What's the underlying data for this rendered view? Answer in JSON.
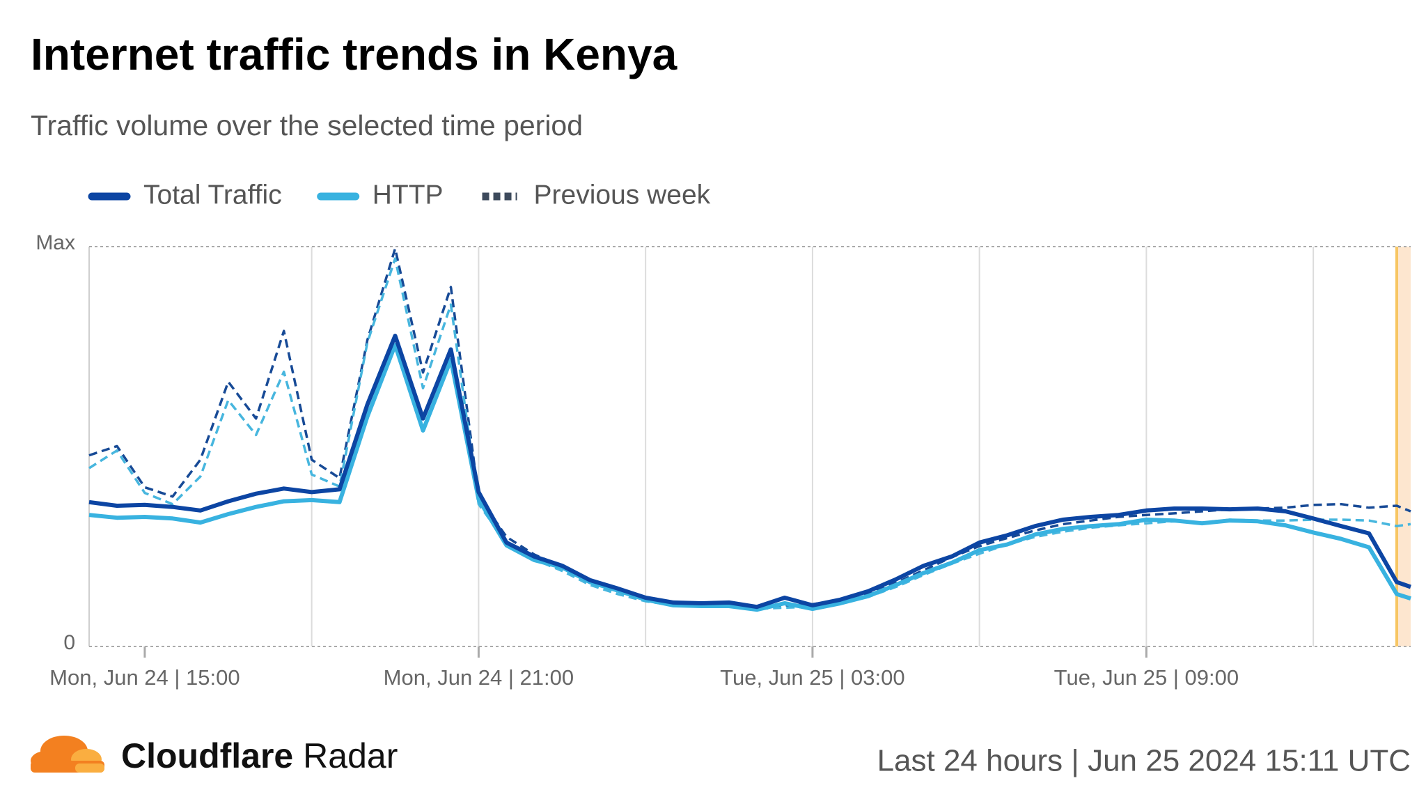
{
  "chart_data": {
    "type": "line",
    "title": "Internet traffic trends in Kenya",
    "subtitle": "Traffic volume over the selected time period",
    "x": [
      "Jun 24 14:00",
      "Jun 24 14:30",
      "Jun 24 15:00",
      "Jun 24 15:30",
      "Jun 24 16:00",
      "Jun 24 16:30",
      "Jun 24 17:00",
      "Jun 24 17:30",
      "Jun 24 18:00",
      "Jun 24 18:30",
      "Jun 24 19:00",
      "Jun 24 19:30",
      "Jun 24 20:00",
      "Jun 24 20:30",
      "Jun 24 21:00",
      "Jun 24 21:30",
      "Jun 24 22:00",
      "Jun 24 22:30",
      "Jun 24 23:00",
      "Jun 24 23:30",
      "Jun 25 00:00",
      "Jun 25 00:30",
      "Jun 25 01:00",
      "Jun 25 01:30",
      "Jun 25 02:00",
      "Jun 25 02:30",
      "Jun 25 03:00",
      "Jun 25 03:30",
      "Jun 25 04:00",
      "Jun 25 04:30",
      "Jun 25 05:00",
      "Jun 25 05:30",
      "Jun 25 06:00",
      "Jun 25 06:30",
      "Jun 25 07:00",
      "Jun 25 07:30",
      "Jun 25 08:00",
      "Jun 25 08:30",
      "Jun 25 09:00",
      "Jun 25 09:30",
      "Jun 25 10:00",
      "Jun 25 10:30",
      "Jun 25 11:00",
      "Jun 25 11:30",
      "Jun 25 12:00",
      "Jun 25 12:30",
      "Jun 25 13:00",
      "Jun 25 13:30",
      "Jun 25 13:45"
    ],
    "series": [
      {
        "name": "Total Traffic",
        "color": "#0c45a3",
        "values": [
          36.1,
          35.2,
          35.4,
          34.9,
          34.0,
          36.3,
          38.2,
          39.5,
          38.6,
          39.3,
          60.5,
          77.7,
          57.0,
          74.3,
          38.6,
          26.0,
          22.5,
          20.2,
          16.6,
          14.5,
          12.2,
          11.0,
          10.8,
          11.0,
          9.9,
          12.2,
          10.3,
          11.7,
          13.8,
          16.8,
          20.2,
          22.5,
          26.0,
          27.8,
          30.1,
          31.7,
          32.4,
          32.9,
          34.0,
          34.5,
          34.5,
          34.3,
          34.5,
          33.8,
          32.0,
          30.1,
          28.3,
          16.1,
          14.9
        ]
      },
      {
        "name": "HTTP",
        "color": "#38b2e0",
        "values": [
          32.9,
          32.2,
          32.4,
          32.0,
          31.0,
          33.1,
          34.9,
          36.3,
          36.6,
          36.1,
          57.5,
          75.4,
          54.0,
          71.7,
          36.8,
          25.3,
          21.6,
          19.8,
          16.1,
          14.0,
          11.7,
          10.3,
          10.1,
          10.1,
          9.2,
          10.8,
          9.4,
          10.8,
          12.6,
          15.4,
          18.4,
          20.9,
          24.1,
          25.5,
          28.0,
          29.4,
          30.1,
          30.6,
          31.7,
          31.5,
          30.8,
          31.5,
          31.3,
          30.3,
          28.5,
          26.9,
          24.8,
          13.1,
          12.0
        ]
      }
    ],
    "previous_week": {
      "name": "Previous week",
      "color": "#3d4a5c",
      "series": [
        {
          "color": "#174a96",
          "values": [
            47.8,
            50.1,
            39.8,
            37.5,
            46.7,
            66.2,
            57.0,
            78.9,
            46.7,
            42.1,
            76.6,
            99.5,
            68.5,
            89.9,
            37.5,
            27.4,
            23.0,
            20.0,
            16.1,
            13.8,
            11.7,
            10.8,
            10.6,
            10.8,
            9.7,
            10.3,
            10.6,
            11.5,
            13.3,
            15.9,
            19.1,
            22.3,
            25.1,
            27.1,
            29.0,
            30.6,
            31.5,
            32.4,
            32.9,
            33.3,
            33.8,
            34.3,
            34.5,
            34.7,
            35.4,
            35.6,
            34.7,
            35.2,
            33.8
          ]
        },
        {
          "color": "#47b6de",
          "values": [
            44.6,
            49.0,
            38.4,
            35.6,
            42.5,
            61.6,
            52.9,
            68.7,
            43.0,
            40.0,
            76.0,
            97.0,
            64.6,
            85.5,
            35.6,
            26.0,
            21.8,
            18.9,
            15.4,
            13.1,
            11.3,
            10.3,
            10.1,
            10.3,
            9.4,
            9.7,
            9.9,
            10.8,
            12.4,
            14.9,
            17.9,
            20.7,
            23.2,
            25.5,
            27.4,
            28.7,
            29.7,
            30.3,
            30.8,
            31.3,
            31.0,
            31.7,
            31.5,
            31.5,
            31.7,
            31.7,
            31.5,
            30.1,
            30.6
          ]
        }
      ]
    },
    "xlim": [
      "Jun 24 14:00",
      "Jun 25 13:45"
    ],
    "xticks": [
      {
        "value": "Jun 24 15:00",
        "label": "Mon, Jun 24 | 15:00"
      },
      {
        "value": "Jun 24 21:00",
        "label": "Mon, Jun 24 | 21:00"
      },
      {
        "value": "Jun 25 03:00",
        "label": "Tue, Jun 25 | 03:00"
      },
      {
        "value": "Jun 25 09:00",
        "label": "Tue, Jun 25 | 09:00"
      }
    ],
    "x_gridlines": [
      "Jun 24 18:00",
      "Jun 24 21:00",
      "Jun 25 00:00",
      "Jun 25 03:00",
      "Jun 25 06:00",
      "Jun 25 09:00",
      "Jun 25 12:00"
    ],
    "ylim": [
      0,
      100
    ],
    "yticks": [
      0,
      {
        "value": 100,
        "label": "Max"
      }
    ],
    "grid": true
  },
  "footer": {
    "brand_bold": "Cloudflare",
    "brand": "Radar",
    "period": "Last 24 hours | Jun 25 2024 15:11 UTC"
  }
}
